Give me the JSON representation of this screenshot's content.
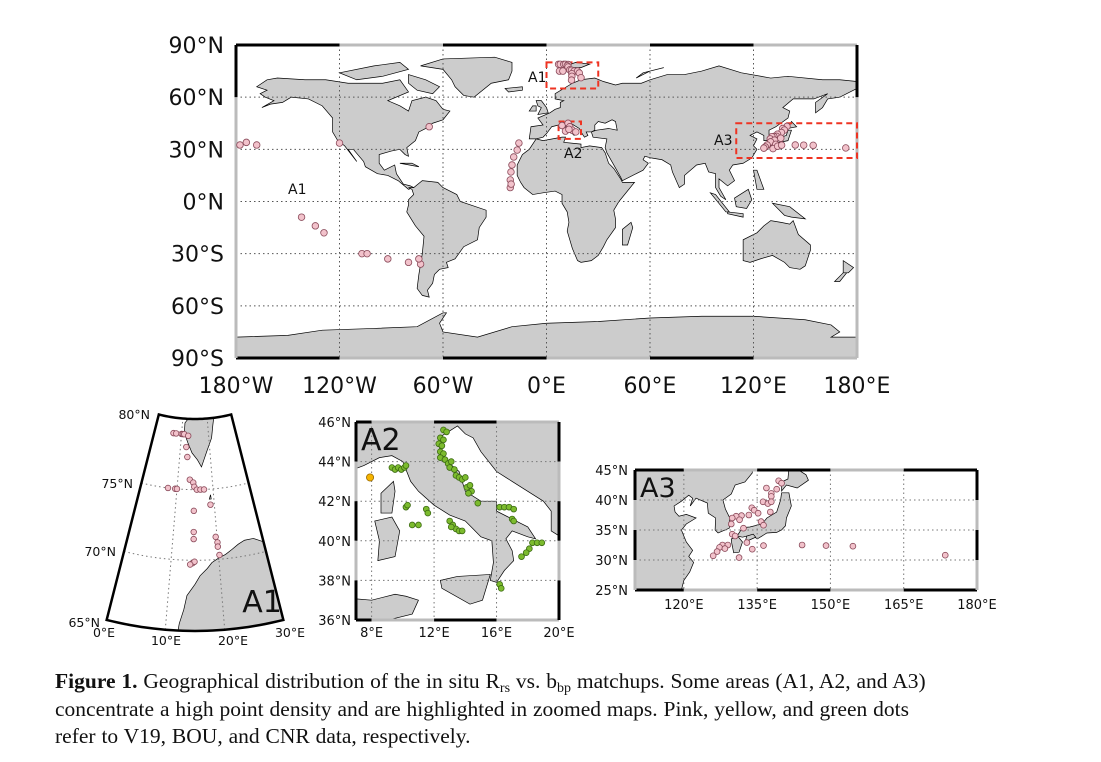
{
  "colors": {
    "land": "#cccccc",
    "coast": "#000000",
    "V19": "#f2c2cb",
    "V19_edge": "#8a4a5a",
    "BOU": "#f5b400",
    "BOU_edge": "#9a6a00",
    "CNR": "#7cbb2e",
    "CNR_edge": "#3c6b12",
    "box": "#ee3322"
  },
  "main_map": {
    "lat_labels": [
      "90°N",
      "60°N",
      "30°N",
      "0°N",
      "30°S",
      "60°S",
      "90°S"
    ],
    "lon_labels": [
      "180°W",
      "120°W",
      "60°W",
      "0°E",
      "60°E",
      "120°E",
      "180°E"
    ],
    "boxes": [
      {
        "label": "A1",
        "lon": [
          0,
          30
        ],
        "lat": [
          65,
          80
        ]
      },
      {
        "label": "A2",
        "lon": [
          7,
          20
        ],
        "lat": [
          36,
          46
        ]
      },
      {
        "label": "A3",
        "lon": [
          110,
          180
        ],
        "lat": [
          25,
          45
        ]
      }
    ],
    "extra_labels": [
      "A1"
    ],
    "points": [
      [
        -177.7,
        32.5
      ],
      [
        -174,
        34
      ],
      [
        -168,
        32.5
      ],
      [
        -120,
        33.6
      ],
      [
        -68,
        43
      ],
      [
        -142,
        -9
      ],
      [
        -134,
        -14
      ],
      [
        -129,
        -18
      ],
      [
        -107,
        -30
      ],
      [
        -104,
        -30
      ],
      [
        -92,
        -33
      ],
      [
        -80,
        -35
      ],
      [
        -73,
        -36
      ],
      [
        -74,
        -33
      ],
      [
        -16,
        33.6
      ],
      [
        -17,
        29.6
      ],
      [
        -19,
        25.6
      ],
      [
        -20,
        21
      ],
      [
        -20.6,
        17
      ],
      [
        -21,
        12.4
      ],
      [
        -21,
        8
      ],
      [
        -20.5,
        10
      ],
      [
        9,
        43.7
      ],
      [
        12.5,
        45
      ],
      [
        13.5,
        43
      ],
      [
        15,
        41
      ],
      [
        17,
        40
      ],
      [
        11,
        40.5
      ],
      [
        13,
        41.5
      ],
      [
        7,
        78.9
      ],
      [
        8,
        78.9
      ],
      [
        10,
        78.9
      ],
      [
        11,
        78.9
      ],
      [
        12.5,
        78.8
      ],
      [
        12,
        78
      ],
      [
        12.5,
        77.3
      ],
      [
        13.5,
        75.7
      ],
      [
        14.5,
        75.5
      ],
      [
        7.5,
        75
      ],
      [
        9.5,
        75
      ],
      [
        16,
        75
      ],
      [
        18,
        75
      ],
      [
        19,
        73.9
      ],
      [
        14.7,
        73.5
      ],
      [
        14.7,
        72
      ],
      [
        20,
        71.2
      ],
      [
        14.5,
        69.8
      ],
      [
        139.4,
        43.2
      ],
      [
        136.9,
        42
      ],
      [
        137.9,
        41.1
      ],
      [
        136.2,
        39.7
      ],
      [
        133.9,
        38.7
      ],
      [
        133.3,
        37.5
      ],
      [
        131.8,
        37.4
      ],
      [
        130.7,
        37.3
      ],
      [
        129.7,
        36
      ],
      [
        135.8,
        36.4
      ],
      [
        132.2,
        35.3
      ],
      [
        129.9,
        34.3
      ],
      [
        132.9,
        32.9
      ],
      [
        127.9,
        32.5
      ],
      [
        126.8,
        31.4
      ],
      [
        126,
        30.7
      ],
      [
        131.3,
        30.4
      ],
      [
        134,
        31.8
      ],
      [
        136.3,
        32.4
      ],
      [
        144.2,
        32.5
      ],
      [
        149.1,
        32.4
      ],
      [
        154.6,
        32.3
      ],
      [
        173.5,
        30.8
      ]
    ]
  },
  "inset_a1": {
    "title": "A1",
    "lat_labels": [
      "80°N",
      "75°N",
      "70°N",
      "65°N"
    ],
    "lon_labels": [
      "0°E",
      "10°E",
      "20°E",
      "30°E"
    ],
    "V19_points": [
      [
        7,
        78.9
      ],
      [
        8,
        78.9
      ],
      [
        10,
        78.9
      ],
      [
        10.5,
        78.9
      ],
      [
        11,
        78.9
      ],
      [
        12.5,
        78.8
      ],
      [
        12,
        78
      ],
      [
        12.5,
        77.3
      ],
      [
        13.5,
        75.7
      ],
      [
        14.5,
        75.5
      ],
      [
        14.8,
        75.2
      ],
      [
        7.5,
        75
      ],
      [
        9.5,
        75
      ],
      [
        10,
        75
      ],
      [
        15.5,
        75
      ],
      [
        16.5,
        75
      ],
      [
        17.5,
        75
      ],
      [
        19,
        73.9
      ],
      [
        14.7,
        73.5
      ],
      [
        14.7,
        72
      ],
      [
        14.7,
        71.5
      ],
      [
        19.7,
        71.6
      ],
      [
        20,
        71.2
      ],
      [
        20,
        70.9
      ],
      [
        20.2,
        70.3
      ],
      [
        14.5,
        69.8
      ],
      [
        14.9,
        69.9
      ],
      [
        14,
        69.7
      ]
    ]
  },
  "inset_a2": {
    "title": "A2",
    "lat_labels": [
      "46°N",
      "44°N",
      "42°N",
      "40°N",
      "38°N",
      "36°N"
    ],
    "lon_labels": [
      "8°E",
      "12°E",
      "16°E",
      "20°E"
    ],
    "BOU_points": [
      [
        7.9,
        43.2
      ]
    ],
    "CNR_points": [
      [
        9.3,
        43.7
      ],
      [
        9.5,
        43.6
      ],
      [
        9.7,
        43.7
      ],
      [
        9.9,
        43.6
      ],
      [
        10.1,
        43.7
      ],
      [
        10.2,
        43.8
      ],
      [
        12.6,
        45.6
      ],
      [
        12.8,
        45.5
      ],
      [
        12.4,
        45.2
      ],
      [
        12.6,
        45.1
      ],
      [
        12.3,
        44.9
      ],
      [
        12.5,
        44.8
      ],
      [
        12.4,
        44.5
      ],
      [
        12.6,
        44.4
      ],
      [
        12.4,
        44.2
      ],
      [
        12.7,
        44.1
      ],
      [
        12.9,
        43.9
      ],
      [
        13.1,
        44.0
      ],
      [
        13.0,
        43.7
      ],
      [
        13.3,
        43.6
      ],
      [
        13.4,
        43.3
      ],
      [
        13.6,
        43.2
      ],
      [
        13.8,
        43.1
      ],
      [
        14.0,
        43.2
      ],
      [
        14.1,
        42.7
      ],
      [
        14.3,
        42.8
      ],
      [
        14.4,
        42.5
      ],
      [
        14.2,
        42.4
      ],
      [
        14.8,
        41.9
      ],
      [
        16.2,
        41.7
      ],
      [
        16.5,
        41.7
      ],
      [
        16.8,
        41.7
      ],
      [
        17.1,
        41.6
      ],
      [
        17.0,
        41.1
      ],
      [
        17.1,
        41.0
      ],
      [
        18.3,
        39.9
      ],
      [
        18.6,
        39.9
      ],
      [
        18.9,
        39.9
      ],
      [
        18.1,
        39.6
      ],
      [
        17.9,
        39.4
      ],
      [
        17.6,
        39.2
      ],
      [
        16.2,
        37.8
      ],
      [
        16.3,
        37.6
      ],
      [
        10.2,
        41.7
      ],
      [
        10.3,
        41.8
      ],
      [
        10.6,
        40.8
      ],
      [
        11.0,
        40.8
      ],
      [
        11.5,
        41.6
      ],
      [
        11.6,
        41.4
      ],
      [
        13.0,
        41.0
      ],
      [
        13.2,
        40.8
      ],
      [
        13.4,
        40.6
      ],
      [
        13.6,
        40.5
      ],
      [
        13.8,
        40.5
      ],
      [
        13.1,
        40.7
      ]
    ]
  },
  "inset_a3": {
    "title": "A3",
    "lat_labels": [
      "45°N",
      "40°N",
      "35°N",
      "30°N",
      "25°N"
    ],
    "lon_labels": [
      "120°E",
      "135°E",
      "150°E",
      "165°E",
      "180°E"
    ],
    "V19_points": [
      [
        139.4,
        43.2
      ],
      [
        140,
        42.8
      ],
      [
        136.9,
        42
      ],
      [
        137.9,
        41.1
      ],
      [
        137.9,
        40.6
      ],
      [
        139,
        41.8
      ],
      [
        136.2,
        39.7
      ],
      [
        137.2,
        39.4
      ],
      [
        137.9,
        39.7
      ],
      [
        137.7,
        38
      ],
      [
        133.9,
        38.7
      ],
      [
        134.4,
        38.3
      ],
      [
        133.3,
        37.5
      ],
      [
        135.2,
        37.8
      ],
      [
        131.8,
        37.4
      ],
      [
        130.7,
        37.3
      ],
      [
        129.9,
        37
      ],
      [
        131.4,
        36.7
      ],
      [
        129.7,
        36
      ],
      [
        135.8,
        36.4
      ],
      [
        136.3,
        35.8
      ],
      [
        132.2,
        35.3
      ],
      [
        129.9,
        34.3
      ],
      [
        130.5,
        34
      ],
      [
        132.9,
        32.9
      ],
      [
        127.9,
        32.5
      ],
      [
        129,
        32.5
      ],
      [
        127.3,
        32.1
      ],
      [
        128.4,
        31.9
      ],
      [
        126.8,
        31.4
      ],
      [
        126,
        30.7
      ],
      [
        131.3,
        30.4
      ],
      [
        134,
        31.8
      ],
      [
        136.3,
        32.4
      ],
      [
        144.2,
        32.5
      ],
      [
        149.1,
        32.4
      ],
      [
        154.6,
        32.3
      ],
      [
        173.5,
        30.8
      ]
    ]
  },
  "caption": {
    "label": "Figure 1.",
    "l1a": " Geographical distribution of the in situ R",
    "l1_sub1": "rs",
    "l1b": " vs. b",
    "l1_sub2": "bp",
    "l1c": " matchups. Some areas (A1, A2, and A3)",
    "l2": "concentrate a high point density and are highlighted in zoomed maps. Pink, yellow, and green dots",
    "l3": "refer to V19, BOU, and CNR data, respectively."
  }
}
